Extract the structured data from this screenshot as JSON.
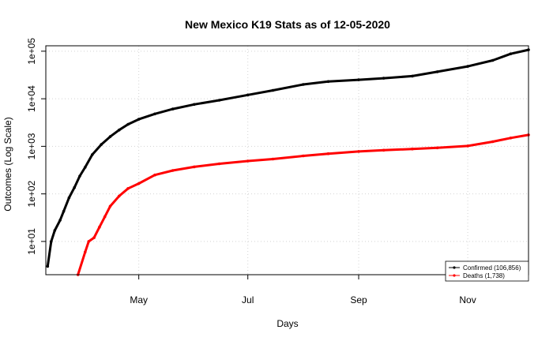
{
  "chart_data": {
    "type": "scatter",
    "title": "New Mexico K19 Stats as of 12-05-2020",
    "xlabel": "Days",
    "ylabel": "Outcomes (Log Scale)",
    "y_scale": "log10",
    "ylim": [
      2,
      130000
    ],
    "xlim": [
      "2020-03-10",
      "2020-12-05"
    ],
    "grid": true,
    "legend_position": "bottom-right",
    "x_ticks": [
      {
        "label": "May",
        "date": "2020-05-01"
      },
      {
        "label": "Jul",
        "date": "2020-07-01"
      },
      {
        "label": "Sep",
        "date": "2020-09-01"
      },
      {
        "label": "Nov",
        "date": "2020-11-01"
      }
    ],
    "y_ticks": [
      {
        "label": "1e+01",
        "value": 10
      },
      {
        "label": "1e+02",
        "value": 100
      },
      {
        "label": "1e+03",
        "value": 1000
      },
      {
        "label": "1e+04",
        "value": 10000
      },
      {
        "label": "1e+05",
        "value": 100000
      }
    ],
    "series": [
      {
        "name": "Confirmed (106,856)",
        "color": "#000000",
        "points": [
          {
            "date": "2020-03-11",
            "value": 3
          },
          {
            "date": "2020-03-13",
            "value": 10
          },
          {
            "date": "2020-03-15",
            "value": 17
          },
          {
            "date": "2020-03-18",
            "value": 28
          },
          {
            "date": "2020-03-20",
            "value": 43
          },
          {
            "date": "2020-03-23",
            "value": 83
          },
          {
            "date": "2020-03-26",
            "value": 136
          },
          {
            "date": "2020-03-29",
            "value": 237
          },
          {
            "date": "2020-04-01",
            "value": 363
          },
          {
            "date": "2020-04-05",
            "value": 670
          },
          {
            "date": "2020-04-10",
            "value": 1091
          },
          {
            "date": "2020-04-15",
            "value": 1600
          },
          {
            "date": "2020-04-20",
            "value": 2200
          },
          {
            "date": "2020-04-25",
            "value": 2900
          },
          {
            "date": "2020-05-01",
            "value": 3700
          },
          {
            "date": "2020-05-10",
            "value": 4800
          },
          {
            "date": "2020-05-20",
            "value": 6100
          },
          {
            "date": "2020-06-01",
            "value": 7600
          },
          {
            "date": "2020-06-15",
            "value": 9300
          },
          {
            "date": "2020-07-01",
            "value": 12000
          },
          {
            "date": "2020-07-15",
            "value": 15000
          },
          {
            "date": "2020-08-01",
            "value": 20000
          },
          {
            "date": "2020-08-15",
            "value": 23000
          },
          {
            "date": "2020-09-01",
            "value": 25000
          },
          {
            "date": "2020-09-15",
            "value": 27000
          },
          {
            "date": "2020-10-01",
            "value": 30000
          },
          {
            "date": "2020-10-15",
            "value": 37000
          },
          {
            "date": "2020-11-01",
            "value": 48000
          },
          {
            "date": "2020-11-15",
            "value": 64000
          },
          {
            "date": "2020-11-25",
            "value": 88000
          },
          {
            "date": "2020-12-05",
            "value": 106856
          }
        ]
      },
      {
        "name": "Deaths (1,738)",
        "color": "#ff0000",
        "points": [
          {
            "date": "2020-03-28",
            "value": 2
          },
          {
            "date": "2020-04-01",
            "value": 6
          },
          {
            "date": "2020-04-03",
            "value": 10
          },
          {
            "date": "2020-04-06",
            "value": 12
          },
          {
            "date": "2020-04-09",
            "value": 20
          },
          {
            "date": "2020-04-12",
            "value": 33
          },
          {
            "date": "2020-04-15",
            "value": 55
          },
          {
            "date": "2020-04-20",
            "value": 90
          },
          {
            "date": "2020-04-25",
            "value": 130
          },
          {
            "date": "2020-05-01",
            "value": 165
          },
          {
            "date": "2020-05-10",
            "value": 250
          },
          {
            "date": "2020-05-20",
            "value": 310
          },
          {
            "date": "2020-06-01",
            "value": 370
          },
          {
            "date": "2020-06-15",
            "value": 430
          },
          {
            "date": "2020-07-01",
            "value": 490
          },
          {
            "date": "2020-07-15",
            "value": 540
          },
          {
            "date": "2020-08-01",
            "value": 630
          },
          {
            "date": "2020-08-15",
            "value": 700
          },
          {
            "date": "2020-09-01",
            "value": 780
          },
          {
            "date": "2020-09-15",
            "value": 830
          },
          {
            "date": "2020-10-01",
            "value": 880
          },
          {
            "date": "2020-10-15",
            "value": 930
          },
          {
            "date": "2020-11-01",
            "value": 1020
          },
          {
            "date": "2020-11-15",
            "value": 1250
          },
          {
            "date": "2020-11-25",
            "value": 1500
          },
          {
            "date": "2020-12-05",
            "value": 1738
          }
        ]
      }
    ]
  }
}
